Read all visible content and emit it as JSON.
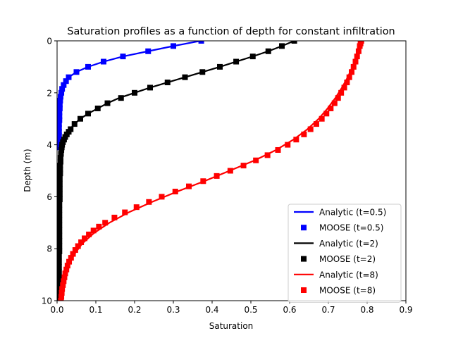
{
  "chart_data": {
    "type": "line",
    "title": "Saturation profiles as a function of depth for constant infiltration",
    "xlabel": "Saturation",
    "ylabel": "Depth (m)",
    "xlim": [
      0.0,
      0.9
    ],
    "ylim": [
      10,
      0
    ],
    "y_inverted": true,
    "grid": false,
    "legend_position": "lower-right",
    "x_ticks": [
      "0.0",
      "0.1",
      "0.2",
      "0.3",
      "0.4",
      "0.5",
      "0.6",
      "0.7",
      "0.8",
      "0.9"
    ],
    "y_ticks": [
      "0",
      "2",
      "4",
      "6",
      "8",
      "10"
    ],
    "series": [
      {
        "name": "Analytic (t=0.5)",
        "kind": "line",
        "color": "#0000ff",
        "points": [
          [
            0.37,
            0.0
          ],
          [
            0.3,
            0.2
          ],
          [
            0.235,
            0.4
          ],
          [
            0.17,
            0.6
          ],
          [
            0.12,
            0.8
          ],
          [
            0.08,
            1.0
          ],
          [
            0.05,
            1.2
          ],
          [
            0.03,
            1.4
          ],
          [
            0.02,
            1.6
          ],
          [
            0.013,
            1.8
          ],
          [
            0.009,
            2.0
          ],
          [
            0.007,
            2.2
          ],
          [
            0.006,
            2.6
          ],
          [
            0.005,
            3.0
          ],
          [
            0.005,
            4.0
          ]
        ]
      },
      {
        "name": "MOOSE (t=0.5)",
        "kind": "markers",
        "color": "#0000ff",
        "points": [
          [
            0.372,
            0.0
          ],
          [
            0.3,
            0.2
          ],
          [
            0.235,
            0.4
          ],
          [
            0.17,
            0.6
          ],
          [
            0.12,
            0.8
          ],
          [
            0.08,
            1.0
          ],
          [
            0.05,
            1.2
          ],
          [
            0.03,
            1.4
          ],
          [
            0.023,
            1.55
          ],
          [
            0.017,
            1.7
          ],
          [
            0.013,
            1.85
          ],
          [
            0.011,
            2.0
          ],
          [
            0.009,
            2.15
          ],
          [
            0.008,
            2.3
          ],
          [
            0.007,
            2.45
          ],
          [
            0.007,
            2.6
          ],
          [
            0.006,
            2.75
          ],
          [
            0.006,
            2.9
          ],
          [
            0.006,
            3.05
          ],
          [
            0.005,
            3.2
          ],
          [
            0.005,
            3.35
          ],
          [
            0.005,
            3.5
          ],
          [
            0.005,
            3.65
          ],
          [
            0.005,
            3.8
          ],
          [
            0.005,
            3.95
          ],
          [
            0.005,
            4.1
          ]
        ]
      },
      {
        "name": "Analytic (t=2)",
        "kind": "line",
        "color": "#000000",
        "points": [
          [
            0.612,
            0.0
          ],
          [
            0.58,
            0.2
          ],
          [
            0.545,
            0.4
          ],
          [
            0.505,
            0.6
          ],
          [
            0.462,
            0.8
          ],
          [
            0.42,
            1.0
          ],
          [
            0.375,
            1.2
          ],
          [
            0.33,
            1.4
          ],
          [
            0.285,
            1.6
          ],
          [
            0.24,
            1.8
          ],
          [
            0.2,
            2.0
          ],
          [
            0.16,
            2.2
          ],
          [
            0.13,
            2.4
          ],
          [
            0.105,
            2.6
          ],
          [
            0.08,
            2.8
          ],
          [
            0.06,
            3.0
          ],
          [
            0.045,
            3.2
          ],
          [
            0.033,
            3.4
          ],
          [
            0.025,
            3.6
          ],
          [
            0.018,
            3.8
          ],
          [
            0.013,
            4.0
          ],
          [
            0.01,
            4.4
          ],
          [
            0.008,
            5.0
          ],
          [
            0.007,
            6.0
          ],
          [
            0.006,
            7.0
          ],
          [
            0.006,
            8.0
          ],
          [
            0.005,
            9.0
          ],
          [
            0.005,
            10.0
          ]
        ]
      },
      {
        "name": "MOOSE (t=2)",
        "kind": "markers",
        "color": "#000000",
        "points": [
          [
            0.612,
            0.0
          ],
          [
            0.58,
            0.2
          ],
          [
            0.545,
            0.4
          ],
          [
            0.505,
            0.6
          ],
          [
            0.462,
            0.8
          ],
          [
            0.42,
            1.0
          ],
          [
            0.375,
            1.2
          ],
          [
            0.33,
            1.4
          ],
          [
            0.285,
            1.6
          ],
          [
            0.24,
            1.8
          ],
          [
            0.2,
            2.0
          ],
          [
            0.165,
            2.2
          ],
          [
            0.13,
            2.4
          ],
          [
            0.105,
            2.6
          ],
          [
            0.08,
            2.8
          ],
          [
            0.06,
            3.0
          ],
          [
            0.045,
            3.2
          ],
          [
            0.035,
            3.4
          ],
          [
            0.03,
            3.5
          ],
          [
            0.025,
            3.6
          ],
          [
            0.021,
            3.7
          ],
          [
            0.018,
            3.8
          ],
          [
            0.015,
            3.9
          ],
          [
            0.013,
            4.0
          ],
          [
            0.012,
            4.1
          ],
          [
            0.011,
            4.2
          ],
          [
            0.01,
            4.35
          ],
          [
            0.009,
            4.5
          ],
          [
            0.009,
            4.65
          ],
          [
            0.008,
            4.8
          ],
          [
            0.008,
            4.95
          ],
          [
            0.008,
            5.1
          ],
          [
            0.007,
            5.3
          ],
          [
            0.007,
            5.5
          ],
          [
            0.007,
            5.7
          ],
          [
            0.007,
            5.9
          ],
          [
            0.007,
            6.1
          ],
          [
            0.006,
            6.3
          ],
          [
            0.006,
            6.5
          ],
          [
            0.006,
            6.7
          ],
          [
            0.006,
            6.9
          ],
          [
            0.006,
            7.1
          ],
          [
            0.006,
            7.3
          ],
          [
            0.006,
            7.5
          ],
          [
            0.006,
            7.7
          ],
          [
            0.006,
            7.9
          ],
          [
            0.006,
            8.1
          ],
          [
            0.005,
            8.3
          ],
          [
            0.005,
            8.5
          ],
          [
            0.005,
            8.7
          ],
          [
            0.005,
            8.9
          ],
          [
            0.005,
            9.1
          ],
          [
            0.005,
            9.3
          ],
          [
            0.005,
            9.5
          ],
          [
            0.005,
            9.7
          ],
          [
            0.005,
            9.9
          ]
        ]
      },
      {
        "name": "Analytic (t=8)",
        "kind": "line",
        "color": "#ff0000",
        "points": [
          [
            0.785,
            0.0
          ],
          [
            0.78,
            0.3
          ],
          [
            0.772,
            0.6
          ],
          [
            0.762,
            1.0
          ],
          [
            0.75,
            1.4
          ],
          [
            0.735,
            1.8
          ],
          [
            0.718,
            2.2
          ],
          [
            0.698,
            2.6
          ],
          [
            0.675,
            3.0
          ],
          [
            0.646,
            3.4
          ],
          [
            0.61,
            3.8
          ],
          [
            0.565,
            4.2
          ],
          [
            0.51,
            4.6
          ],
          [
            0.445,
            5.0
          ],
          [
            0.38,
            5.4
          ],
          [
            0.31,
            5.8
          ],
          [
            0.245,
            6.2
          ],
          [
            0.185,
            6.6
          ],
          [
            0.135,
            7.0
          ],
          [
            0.095,
            7.4
          ],
          [
            0.065,
            7.8
          ],
          [
            0.045,
            8.2
          ],
          [
            0.03,
            8.6
          ],
          [
            0.02,
            9.0
          ],
          [
            0.014,
            9.4
          ],
          [
            0.01,
            9.8
          ],
          [
            0.009,
            10.0
          ]
        ]
      },
      {
        "name": "MOOSE (t=8)",
        "kind": "markers",
        "color": "#ff0000",
        "points": [
          [
            0.785,
            0.0
          ],
          [
            0.783,
            0.1
          ],
          [
            0.781,
            0.2
          ],
          [
            0.778,
            0.4
          ],
          [
            0.774,
            0.6
          ],
          [
            0.77,
            0.8
          ],
          [
            0.765,
            1.0
          ],
          [
            0.76,
            1.2
          ],
          [
            0.754,
            1.4
          ],
          [
            0.748,
            1.6
          ],
          [
            0.741,
            1.8
          ],
          [
            0.733,
            2.0
          ],
          [
            0.725,
            2.2
          ],
          [
            0.716,
            2.4
          ],
          [
            0.706,
            2.6
          ],
          [
            0.695,
            2.8
          ],
          [
            0.683,
            3.0
          ],
          [
            0.669,
            3.2
          ],
          [
            0.654,
            3.4
          ],
          [
            0.637,
            3.6
          ],
          [
            0.617,
            3.8
          ],
          [
            0.595,
            4.0
          ],
          [
            0.57,
            4.2
          ],
          [
            0.543,
            4.4
          ],
          [
            0.513,
            4.6
          ],
          [
            0.481,
            4.8
          ],
          [
            0.447,
            5.0
          ],
          [
            0.412,
            5.2
          ],
          [
            0.377,
            5.4
          ],
          [
            0.34,
            5.6
          ],
          [
            0.305,
            5.8
          ],
          [
            0.27,
            6.0
          ],
          [
            0.237,
            6.2
          ],
          [
            0.205,
            6.4
          ],
          [
            0.175,
            6.6
          ],
          [
            0.148,
            6.8
          ],
          [
            0.124,
            7.0
          ],
          [
            0.108,
            7.15
          ],
          [
            0.094,
            7.3
          ],
          [
            0.082,
            7.45
          ],
          [
            0.071,
            7.6
          ],
          [
            0.062,
            7.75
          ],
          [
            0.054,
            7.9
          ],
          [
            0.047,
            8.05
          ],
          [
            0.041,
            8.2
          ],
          [
            0.036,
            8.35
          ],
          [
            0.031,
            8.5
          ],
          [
            0.027,
            8.65
          ],
          [
            0.024,
            8.8
          ],
          [
            0.021,
            8.95
          ],
          [
            0.019,
            9.1
          ],
          [
            0.017,
            9.25
          ],
          [
            0.015,
            9.4
          ],
          [
            0.013,
            9.55
          ],
          [
            0.012,
            9.7
          ],
          [
            0.011,
            9.85
          ],
          [
            0.01,
            10.0
          ]
        ]
      }
    ]
  }
}
